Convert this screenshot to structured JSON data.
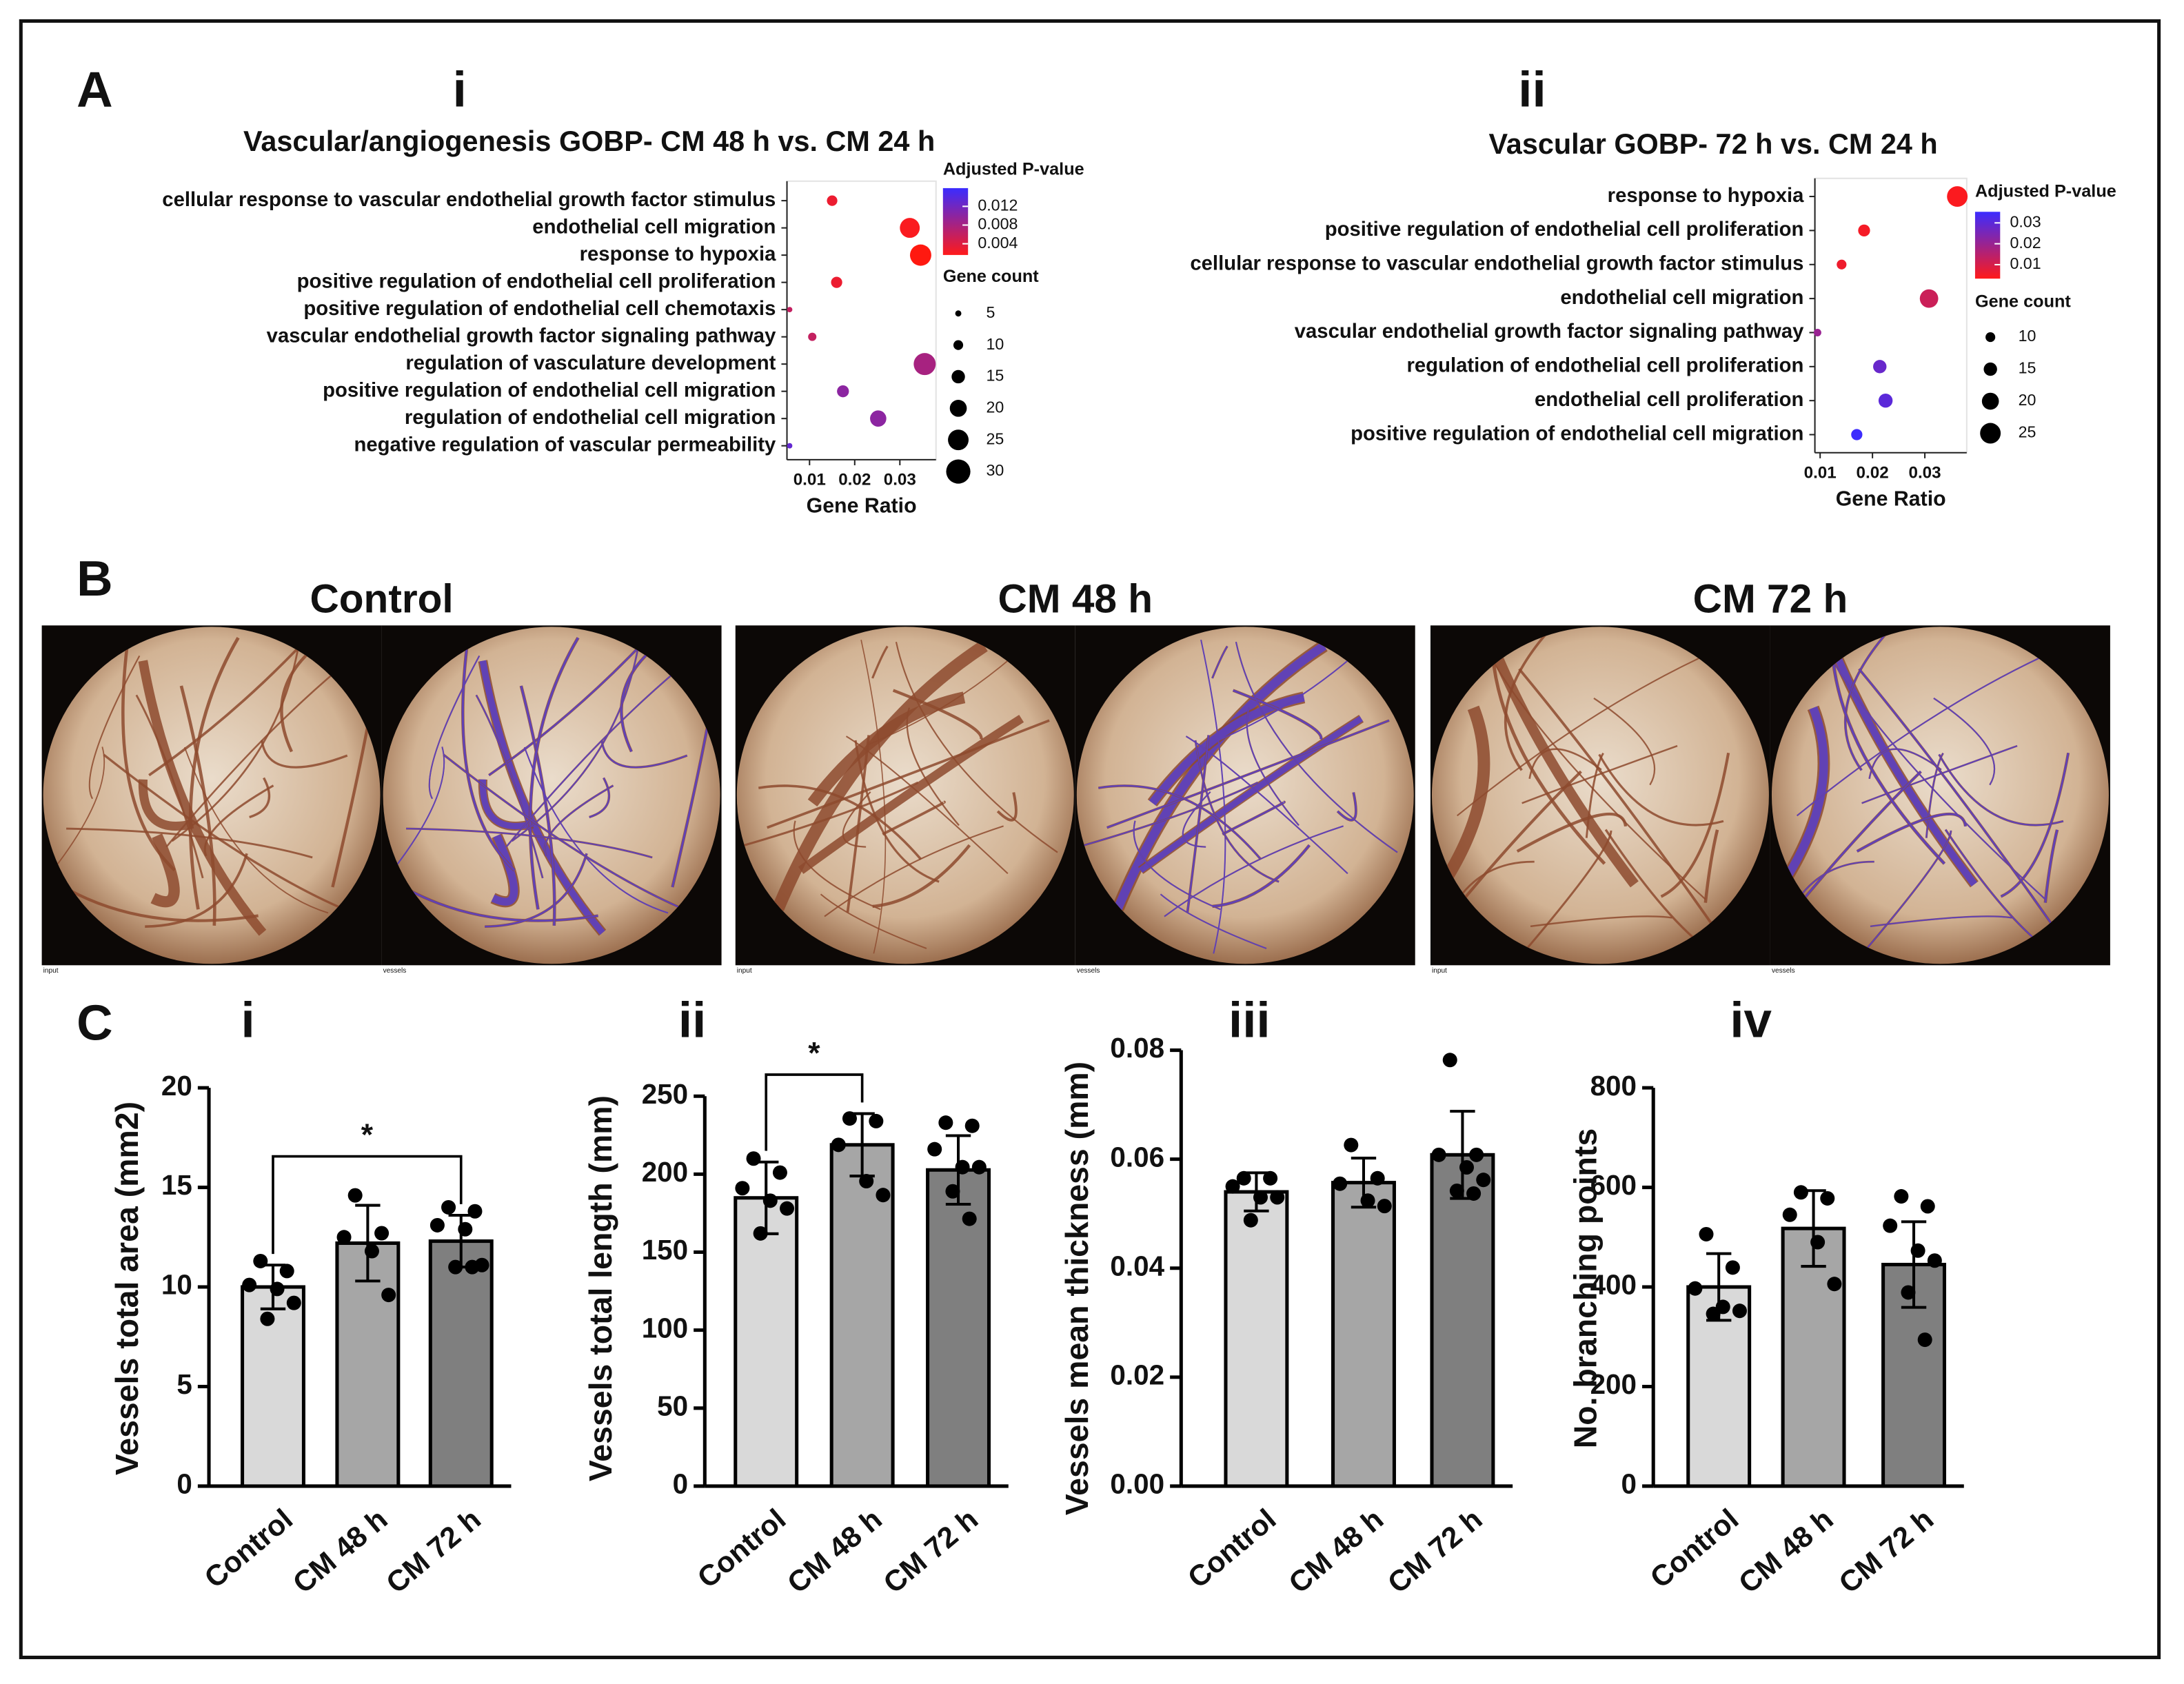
{
  "panel_labels": [
    "A",
    "B",
    "C"
  ],
  "photos": [
    {
      "title": "Control",
      "labels": [
        "input",
        "vessels"
      ]
    },
    {
      "title": "CM 48 h",
      "labels": [
        "input",
        "vessels"
      ]
    },
    {
      "title": "CM 72 h",
      "labels": [
        "input",
        "vessels"
      ]
    }
  ],
  "chart_data": [
    {
      "type": "dot",
      "panel": "i",
      "title": "Vascular/angiogenesis GOBP- CM 48 h vs. CM 24 h",
      "categories": [
        "cellular response to vascular endothelial growth factor stimulus",
        "endothelial cell migration",
        "response to hypoxia",
        "positive regulation of endothelial cell proliferation",
        "positive regulation of endothelial cell chemotaxis",
        "vascular endothelial growth factor signaling pathway",
        "regulation of vasculature development",
        "positive regulation of endothelial cell migration",
        "regulation of endothelial cell migration",
        "negative regulation of vascular permeability"
      ],
      "gene_ratio": [
        0.015,
        0.0322,
        0.0346,
        0.016,
        0.0056,
        0.0106,
        0.0355,
        0.0174,
        0.0252,
        0.0056
      ],
      "gene_count": [
        11,
        24,
        26,
        12,
        4,
        8,
        27,
        13,
        19,
        4
      ],
      "padj": [
        0.003,
        0.002,
        0.001,
        0.003,
        0.006,
        0.006,
        0.008,
        0.01,
        0.01,
        0.013
      ],
      "xlabel": "Gene Ratio",
      "xlim": [
        0.005,
        0.038
      ],
      "xticks": [
        0.01,
        0.02,
        0.03
      ],
      "color_title": "Adjusted P-value",
      "clim": [
        0.0016,
        0.0159
      ],
      "cticks": [
        0.004,
        0.008,
        0.012
      ],
      "color_low": "#ff1a1a",
      "color_high": "#3b2cff",
      "size_title": "Gene count",
      "size_ticks": [
        5,
        10,
        15,
        20,
        25,
        30
      ]
    },
    {
      "type": "dot",
      "panel": "ii",
      "title": "Vascular GOBP- 72 h vs. CM 24 h",
      "categories": [
        "response to hypoxia",
        "positive regulation of endothelial cell proliferation",
        "cellular response to vascular endothelial growth factor stimulus",
        "endothelial cell migration",
        "vascular endothelial growth factor signaling pathway",
        "regulation of endothelial cell proliferation",
        "endothelial cell proliferation",
        "positive regulation of endothelial cell migration"
      ],
      "gene_ratio": [
        0.0362,
        0.0184,
        0.0141,
        0.0308,
        0.0095,
        0.0214,
        0.0225,
        0.017
      ],
      "gene_count": [
        25,
        13,
        10,
        22,
        7,
        15,
        16,
        12
      ],
      "padj": [
        0.004,
        0.005,
        0.006,
        0.012,
        0.02,
        0.028,
        0.03,
        0.035
      ],
      "xlabel": "Gene Ratio",
      "xlim": [
        0.009,
        0.038
      ],
      "xticks": [
        0.01,
        0.02,
        0.03
      ],
      "color_title": "Adjusted P-value",
      "clim": [
        0.0033,
        0.0353
      ],
      "cticks": [
        0.01,
        0.02,
        0.03
      ],
      "color_low": "#ff1a1a",
      "color_high": "#3b2cff",
      "size_title": "Gene count",
      "size_ticks": [
        10,
        15,
        20,
        25
      ]
    },
    {
      "type": "bar",
      "title": "i",
      "ylabel": "Vessels total area (mm2)",
      "categories": [
        "Control",
        "CM 48 h",
        "CM 72 h"
      ],
      "values": [
        10.0,
        12.2,
        12.3
      ],
      "errors": [
        1.1,
        1.9,
        1.3
      ],
      "points": [
        [
          11.3,
          10.8,
          10.1,
          9.9,
          9.2,
          8.4
        ],
        [
          14.6,
          12.7,
          12.5,
          11.8,
          9.6
        ],
        [
          14.0,
          13.8,
          13.1,
          12.9,
          11.1,
          11.0,
          11.0
        ]
      ],
      "colors": [
        "#d9d9d9",
        "#a6a6a6",
        "#7f7f7f"
      ],
      "ylim": [
        0,
        20
      ],
      "yticks": [
        0,
        5,
        10,
        15,
        20
      ],
      "comparisons": [
        {
          "groups": [
            "Control",
            "CM 72 h"
          ],
          "label": "*"
        }
      ]
    },
    {
      "type": "bar",
      "title": "ii",
      "ylabel": "Vessels total length (mm)",
      "categories": [
        "Control",
        "CM 48 h",
        "CM 72 h"
      ],
      "values": [
        184.8,
        218.8,
        202.7
      ],
      "errors": [
        23,
        20,
        22
      ],
      "points": [
        [
          210,
          201,
          191,
          183,
          178,
          162
        ],
        [
          235.7,
          234,
          218.8,
          195.5,
          186.6
        ],
        [
          233,
          231,
          216,
          204.5,
          204.5,
          189,
          171.4
        ]
      ],
      "colors": [
        "#d9d9d9",
        "#a6a6a6",
        "#7f7f7f"
      ],
      "ylim": [
        0,
        250
      ],
      "yticks": [
        0,
        50,
        100,
        150,
        200,
        250
      ],
      "comparisons": [
        {
          "groups": [
            "Control",
            "CM 48 h"
          ],
          "label": "*"
        }
      ]
    },
    {
      "type": "bar",
      "title": "iii",
      "ylabel": "Vessels mean thickness (mm)",
      "categories": [
        "Control",
        "CM 48 h",
        "CM 72 h"
      ],
      "values": [
        0.054,
        0.0557,
        0.0608
      ],
      "errors": [
        0.0035,
        0.0045,
        0.008
      ],
      "points": [
        [
          0.0565,
          0.0565,
          0.055,
          0.053,
          0.053,
          0.0488
        ],
        [
          0.0626,
          0.0565,
          0.0555,
          0.0524,
          0.0514
        ],
        [
          0.0782,
          0.0608,
          0.0608,
          0.0585,
          0.0562,
          0.0542,
          0.0537
        ]
      ],
      "colors": [
        "#d9d9d9",
        "#a6a6a6",
        "#7f7f7f"
      ],
      "ylim": [
        0,
        0.08
      ],
      "yticks": [
        {
          "value": 0,
          "label": "0.00"
        },
        0.02,
        0.04,
        0.06,
        0.08
      ]
    },
    {
      "type": "bar",
      "title": "iv",
      "ylabel": "No. branching points",
      "categories": [
        "Control",
        "CM 48 h",
        "CM 72 h"
      ],
      "values": [
        400,
        517.5,
        445
      ],
      "errors": [
        67,
        76,
        86
      ],
      "points": [
        [
          506,
          439,
          397,
          360,
          352,
          346
        ],
        [
          590,
          578,
          545,
          490,
          406
        ],
        [
          582,
          562,
          523,
          473,
          453,
          389,
          294
        ]
      ],
      "colors": [
        "#d9d9d9",
        "#a6a6a6",
        "#7f7f7f"
      ],
      "ylim": [
        0,
        800
      ],
      "yticks": [
        0,
        200,
        400,
        600,
        800
      ]
    }
  ]
}
